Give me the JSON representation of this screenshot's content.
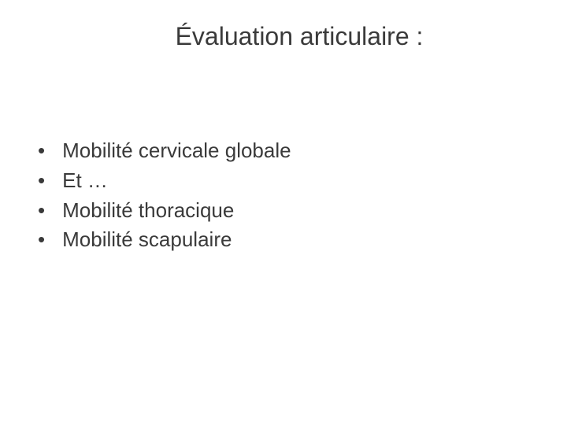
{
  "slide": {
    "title": "Évaluation articulaire :",
    "title_fontsize": 32,
    "title_color": "#3a3a3a",
    "background_color": "#ffffff",
    "bullets": [
      {
        "text": "Mobilité cervicale globale"
      },
      {
        "text": "Et …"
      },
      {
        "text": "Mobilité thoracique"
      },
      {
        "text": "Mobilité scapulaire"
      }
    ],
    "bullet_fontsize": 26,
    "bullet_color": "#3a3a3a",
    "bullet_marker": "•"
  }
}
